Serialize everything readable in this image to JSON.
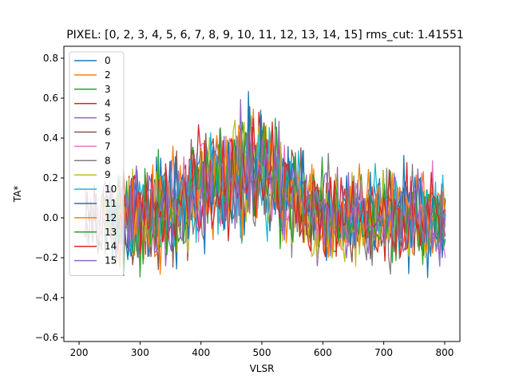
{
  "chart_data": {
    "type": "line",
    "title": "PIXEL: [0, 2, 3, 4, 5, 6, 7, 8, 9, 10, 11, 12, 13, 14, 15]   rms_cut: 1.41551",
    "xlabel": "VLSR",
    "ylabel": "TA*",
    "xlim": [
      175,
      825
    ],
    "ylim": [
      -0.62,
      0.86
    ],
    "xticks": [
      200,
      300,
      400,
      500,
      600,
      700,
      800
    ],
    "yticks": [
      -0.6,
      -0.4,
      -0.2,
      0.0,
      0.2,
      0.4,
      0.6,
      0.8
    ],
    "xtick_labels": [
      "200",
      "300",
      "400",
      "500",
      "600",
      "700",
      "800"
    ],
    "ytick_labels": [
      "−0.6",
      "−0.4",
      "−0.2",
      "0.0",
      "0.2",
      "0.4",
      "0.6",
      "0.8"
    ],
    "grid": false,
    "legend_position": "upper-left",
    "x_range": [
      200,
      800
    ],
    "noise_envelope": {
      "description_points_x": [
        200,
        250,
        300,
        350,
        400,
        450,
        500,
        550,
        600,
        650,
        700,
        750,
        800
      ],
      "baseline_mean": [
        0.0,
        0.0,
        0.0,
        0.05,
        0.15,
        0.2,
        0.25,
        0.12,
        0.0,
        0.0,
        0.0,
        0.0,
        0.0
      ],
      "amplitude": [
        0.18,
        0.2,
        0.22,
        0.22,
        0.24,
        0.26,
        0.26,
        0.22,
        0.2,
        0.2,
        0.2,
        0.2,
        0.2
      ]
    },
    "series": [
      {
        "name": "0",
        "color": "#1f77b4"
      },
      {
        "name": "2",
        "color": "#ff7f0e"
      },
      {
        "name": "3",
        "color": "#2ca02c"
      },
      {
        "name": "4",
        "color": "#d62728"
      },
      {
        "name": "5",
        "color": "#9467bd"
      },
      {
        "name": "6",
        "color": "#8c564b"
      },
      {
        "name": "7",
        "color": "#e377c2"
      },
      {
        "name": "8",
        "color": "#7f7f7f"
      },
      {
        "name": "9",
        "color": "#bcbd22"
      },
      {
        "name": "10",
        "color": "#17becf"
      },
      {
        "name": "11",
        "color": "#1f77b4"
      },
      {
        "name": "12",
        "color": "#ff7f0e"
      },
      {
        "name": "13",
        "color": "#2ca02c"
      },
      {
        "name": "14",
        "color": "#d62728"
      },
      {
        "name": "15",
        "color": "#9467bd"
      }
    ]
  }
}
